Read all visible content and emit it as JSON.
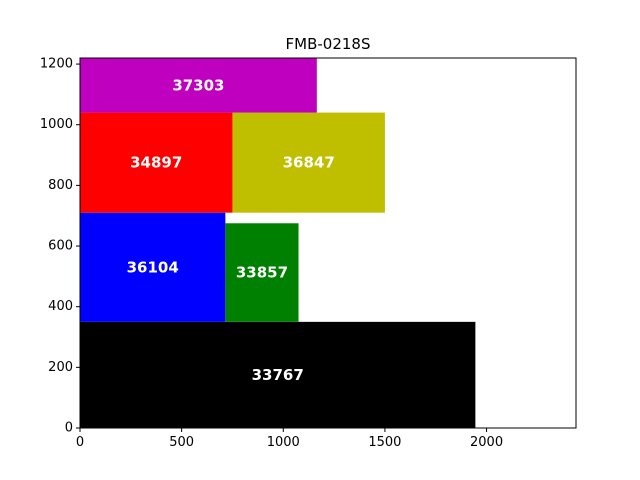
{
  "chart_data": {
    "type": "bar",
    "title": "FMB-0218S",
    "xlabel": "",
    "ylabel": "",
    "xlim": [
      0,
      2440
    ],
    "ylim": [
      0,
      1220
    ],
    "xticks": [
      0,
      500,
      1000,
      1500,
      2000
    ],
    "yticks": [
      0,
      200,
      400,
      600,
      800,
      1000,
      1200
    ],
    "grid": false,
    "rectangles": [
      {
        "label": "33767",
        "x": 0,
        "y": 0,
        "width": 1945,
        "height": 350,
        "color": "#000000"
      },
      {
        "label": "36104",
        "x": 0,
        "y": 350,
        "width": 715,
        "height": 360,
        "color": "#0000ff"
      },
      {
        "label": "33857",
        "x": 715,
        "y": 350,
        "width": 360,
        "height": 325,
        "color": "#008000"
      },
      {
        "label": "34897",
        "x": 0,
        "y": 710,
        "width": 750,
        "height": 330,
        "color": "#ff0000"
      },
      {
        "label": "36847",
        "x": 750,
        "y": 710,
        "width": 750,
        "height": 330,
        "color": "#bfbf00"
      },
      {
        "label": "37303",
        "x": 0,
        "y": 1040,
        "width": 1165,
        "height": 180,
        "color": "#bf00bf"
      }
    ]
  }
}
